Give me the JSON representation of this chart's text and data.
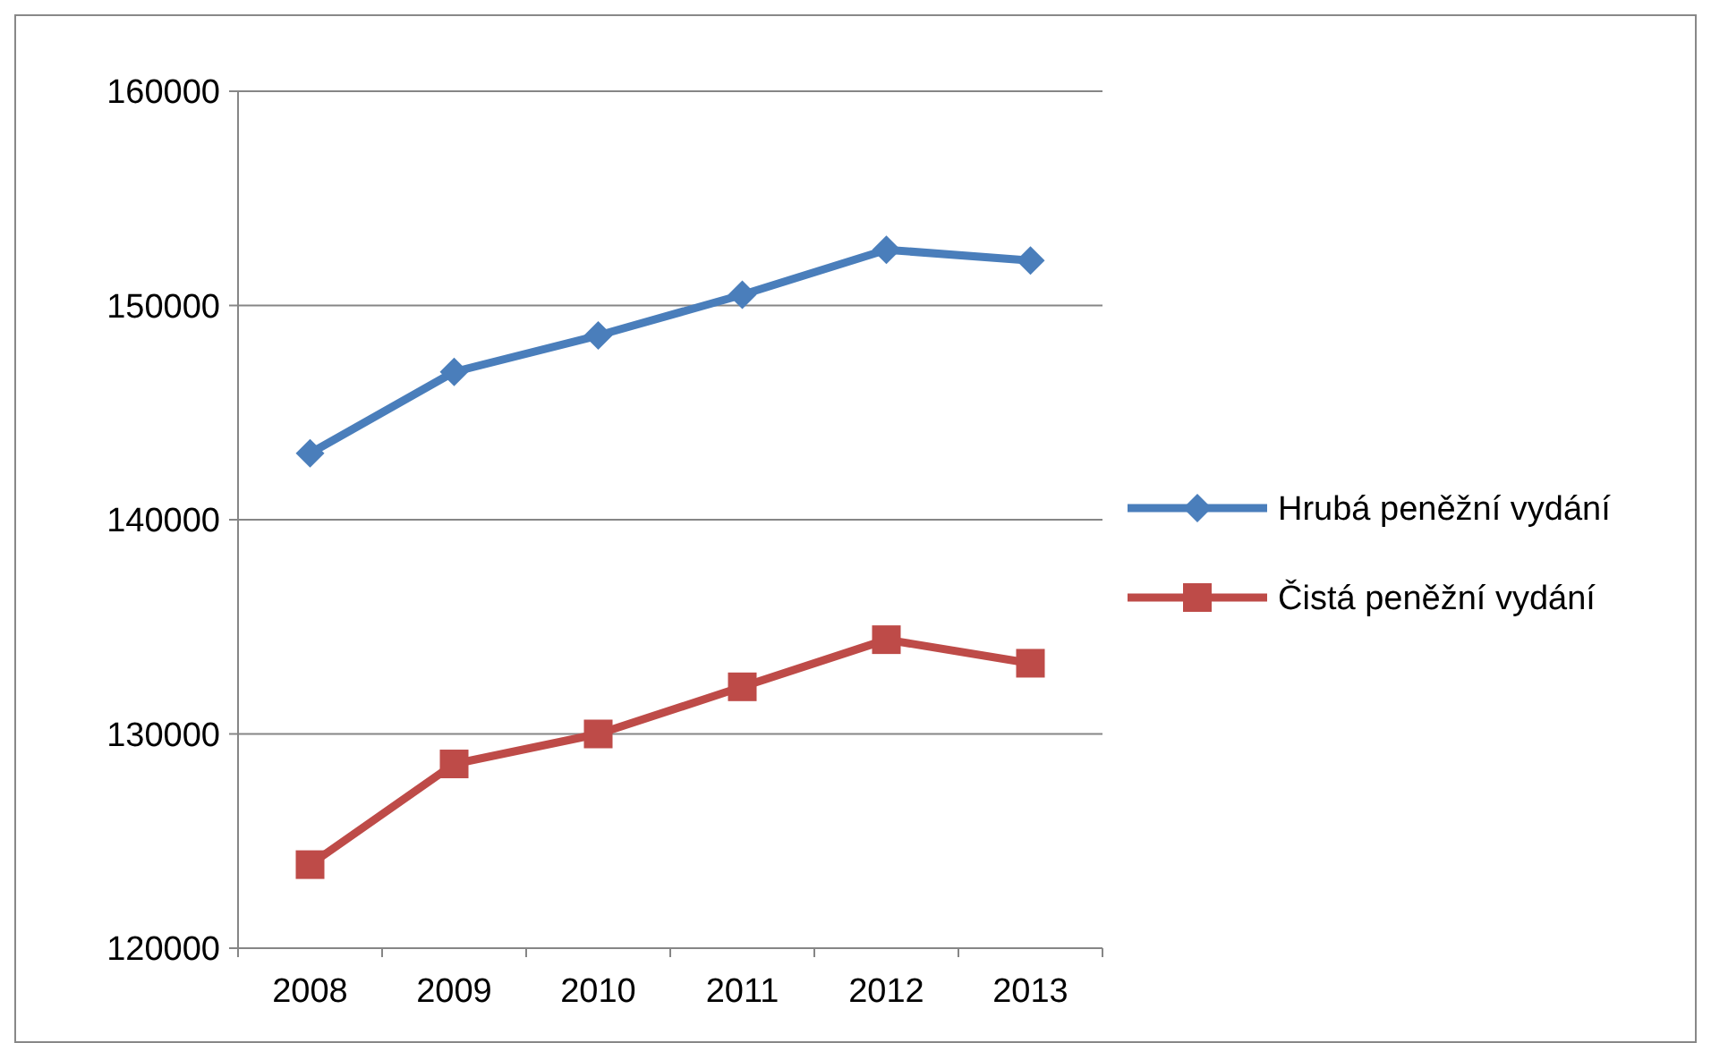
{
  "chart_data": {
    "type": "line",
    "categories": [
      "2008",
      "2009",
      "2010",
      "2011",
      "2012",
      "2013"
    ],
    "series": [
      {
        "name": "Hrubá peněžní vydání",
        "color": "#4a7ebb",
        "marker": "diamond",
        "values": [
          143100,
          146900,
          148600,
          150500,
          152600,
          152100
        ]
      },
      {
        "name": "Čistá peněžní vydání",
        "color": "#be4b48",
        "marker": "square",
        "values": [
          123900,
          128600,
          130000,
          132200,
          134400,
          133300
        ]
      }
    ],
    "ylim": [
      120000,
      160000
    ],
    "yticks": [
      120000,
      130000,
      140000,
      150000,
      160000
    ],
    "grid": "y",
    "legend": "right",
    "line_style": "solid"
  }
}
